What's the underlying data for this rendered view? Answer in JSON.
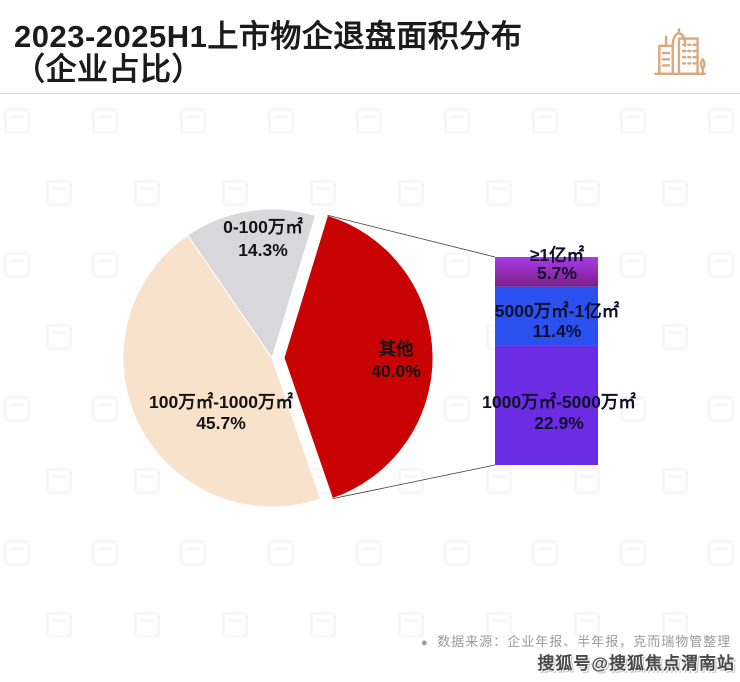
{
  "header": {
    "title_line1": "2023-2025H1上市物企退盘面积分布",
    "title_line2": "（企业占比）"
  },
  "footer": {
    "source_bullet": "●",
    "source_note": "数据来源：企业年报、半年报，克而瑞物管整理",
    "watermark": "搜狐号@搜狐焦点渭南站"
  },
  "colors": {
    "title_text": "#1b1b1b",
    "header_icon": "#D9A87C",
    "divider": "#dcdcdc",
    "pie_gray": "#D8D8DA",
    "pie_red": "#C90303",
    "pie_cream": "#F8E2CC",
    "bar_top_gradient_start": "#A83CE8",
    "bar_top_gradient_end": "#7E1E86",
    "bar_blue": "#2B50F0",
    "bar_purple": "#6C2CE3",
    "callout_line": "#3a3a3a",
    "pie_label_text": "#141414",
    "bar_label_text": "#10102e",
    "source_text": "#9a9a9a",
    "watermark_text": "#4a4a4a"
  },
  "chart_data": [
    {
      "type": "pie",
      "title": "2023-2025H1上市物企退盘面积分布（企业占比）",
      "units": "%",
      "start_angle_deg": -34.5,
      "legend": "none",
      "labels_position": "inside",
      "slices": [
        {
          "label": "0-100万㎡",
          "value": 14.3,
          "pct_label": "14.3%",
          "color": "#D8D8DA",
          "exploded": false
        },
        {
          "label": "其他",
          "value": 40.0,
          "pct_label": "40.0%",
          "color": "#C90303",
          "exploded": true
        },
        {
          "label": "100万㎡-1000万㎡",
          "value": 45.7,
          "pct_label": "45.7%",
          "color": "#F8E2CC",
          "exploded": false
        }
      ]
    },
    {
      "type": "bar",
      "subtype": "stacked-breakout",
      "breakout_of": "其他",
      "total_value": 40.0,
      "orientation": "vertical",
      "labels_position": "inside",
      "segments": [
        {
          "label": "≥1亿㎡",
          "value": 5.7,
          "pct_label": "5.7%",
          "color": "gradient"
        },
        {
          "label": "5000万㎡-1亿㎡",
          "value": 11.4,
          "pct_label": "11.4%",
          "color": "#2B50F0"
        },
        {
          "label": "1000万㎡-5000万㎡",
          "value": 22.9,
          "pct_label": "22.9%",
          "color": "#6C2CE3"
        }
      ]
    }
  ]
}
